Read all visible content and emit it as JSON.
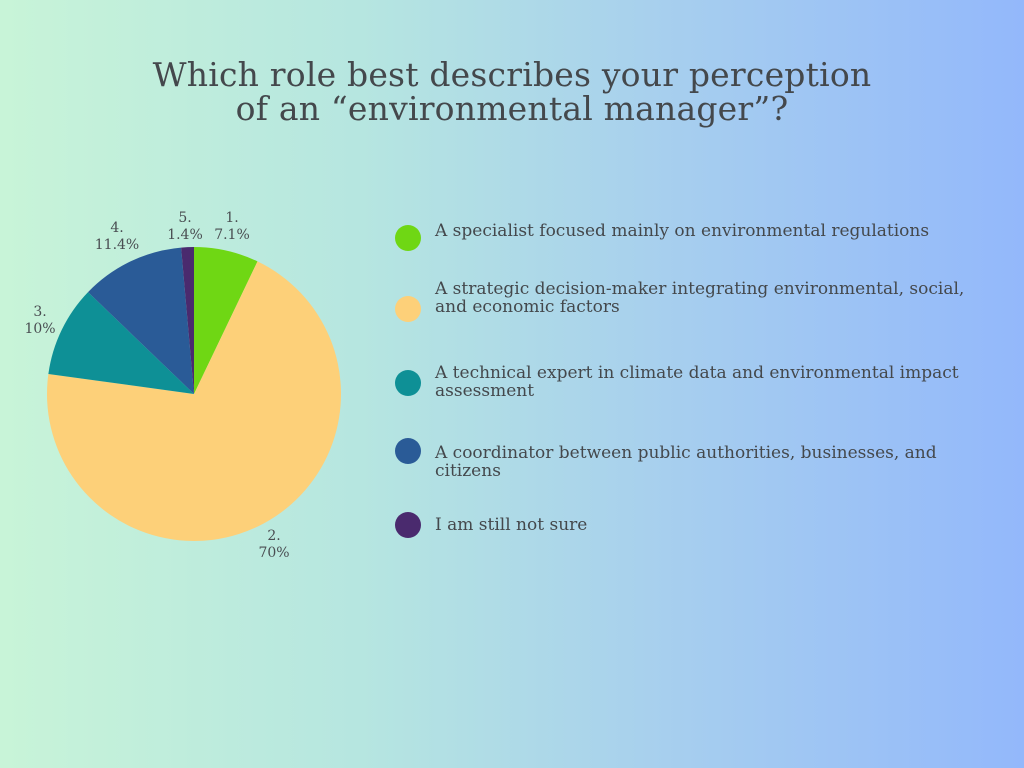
{
  "title_line1": "Which role best describes your perception",
  "title_line2": "of an “environmental manager”?",
  "chart_data": {
    "type": "pie",
    "title": "Which role best describes your perception of an “environmental manager”?",
    "slices": [
      {
        "label": "1.",
        "value": 7.1,
        "value_text": "7.1%",
        "color": "#6fd714",
        "legend": "A specialist focused mainly on environmental regulations"
      },
      {
        "label": "2.",
        "value": 70,
        "value_text": "70%",
        "color": "#fdd079",
        "legend": "A strategic decision-maker integrating environmental, social, and economic factors"
      },
      {
        "label": "3.",
        "value": 10,
        "value_text": "10%",
        "color": "#0e9096",
        "legend": "A technical expert in climate data and environmental impact assessment"
      },
      {
        "label": "4.",
        "value": 11.4,
        "value_text": "11.4%",
        "color": "#2a5b97",
        "legend": "A coordinator between public authorities, businesses, and citizens"
      },
      {
        "label": "5.",
        "value": 1.4,
        "value_text": "1.4%",
        "color": "#4a2a6e",
        "legend": "I am still not sure"
      }
    ],
    "legend_placement": "right"
  }
}
